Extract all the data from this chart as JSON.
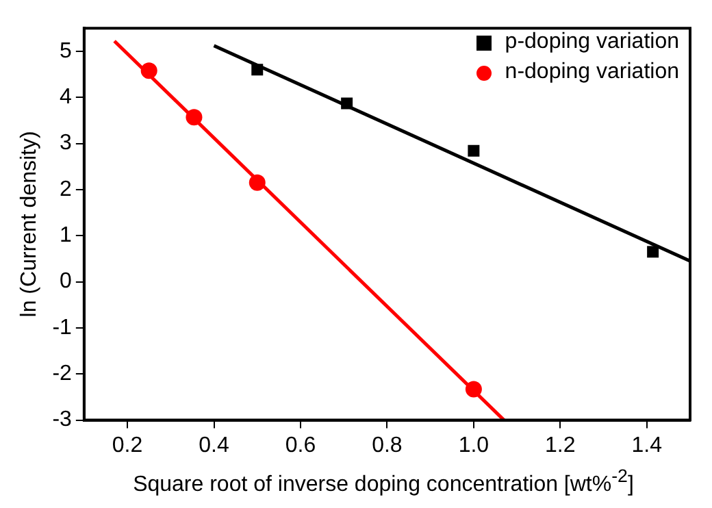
{
  "chart_data": {
    "type": "scatter",
    "xlabel": "Square root of inverse doping concentration [wt%$^{-2}$]",
    "ylabel": "ln (Current density)",
    "xlim": [
      0.1,
      1.5
    ],
    "xticks": [
      0.2,
      0.4,
      0.6,
      0.8,
      {
        "value": 1,
        "label": "1.0"
      },
      1.2,
      1.4
    ],
    "ylim": [
      -3,
      5.5
    ],
    "yticks": [
      -3,
      -2,
      -1,
      0,
      1,
      2,
      3,
      4,
      5
    ],
    "grid": false,
    "legend": "top right",
    "series": [
      {
        "name": "p-doping variation",
        "color": "#000000",
        "marker": "square",
        "x": [
          0.5,
          0.707,
          1.0,
          1.414
        ],
        "values": [
          4.6,
          3.87,
          2.84,
          0.65
        ]
      },
      {
        "name": "n-doping variation",
        "color": "#ff0000",
        "marker": "circle",
        "x": [
          0.25,
          0.354,
          0.5,
          1.0
        ],
        "values": [
          4.58,
          3.57,
          2.15,
          -2.33
        ]
      },
      {
        "type": "line",
        "color": "#000000",
        "marker": "none",
        "x": [
          0.4,
          1.5
        ],
        "values": [
          5.12,
          0.45
        ]
      },
      {
        "type": "line",
        "color": "#ff0000",
        "marker": "none",
        "x": [
          0.17,
          1.07
        ],
        "values": [
          5.22,
          -3.0
        ]
      }
    ]
  }
}
